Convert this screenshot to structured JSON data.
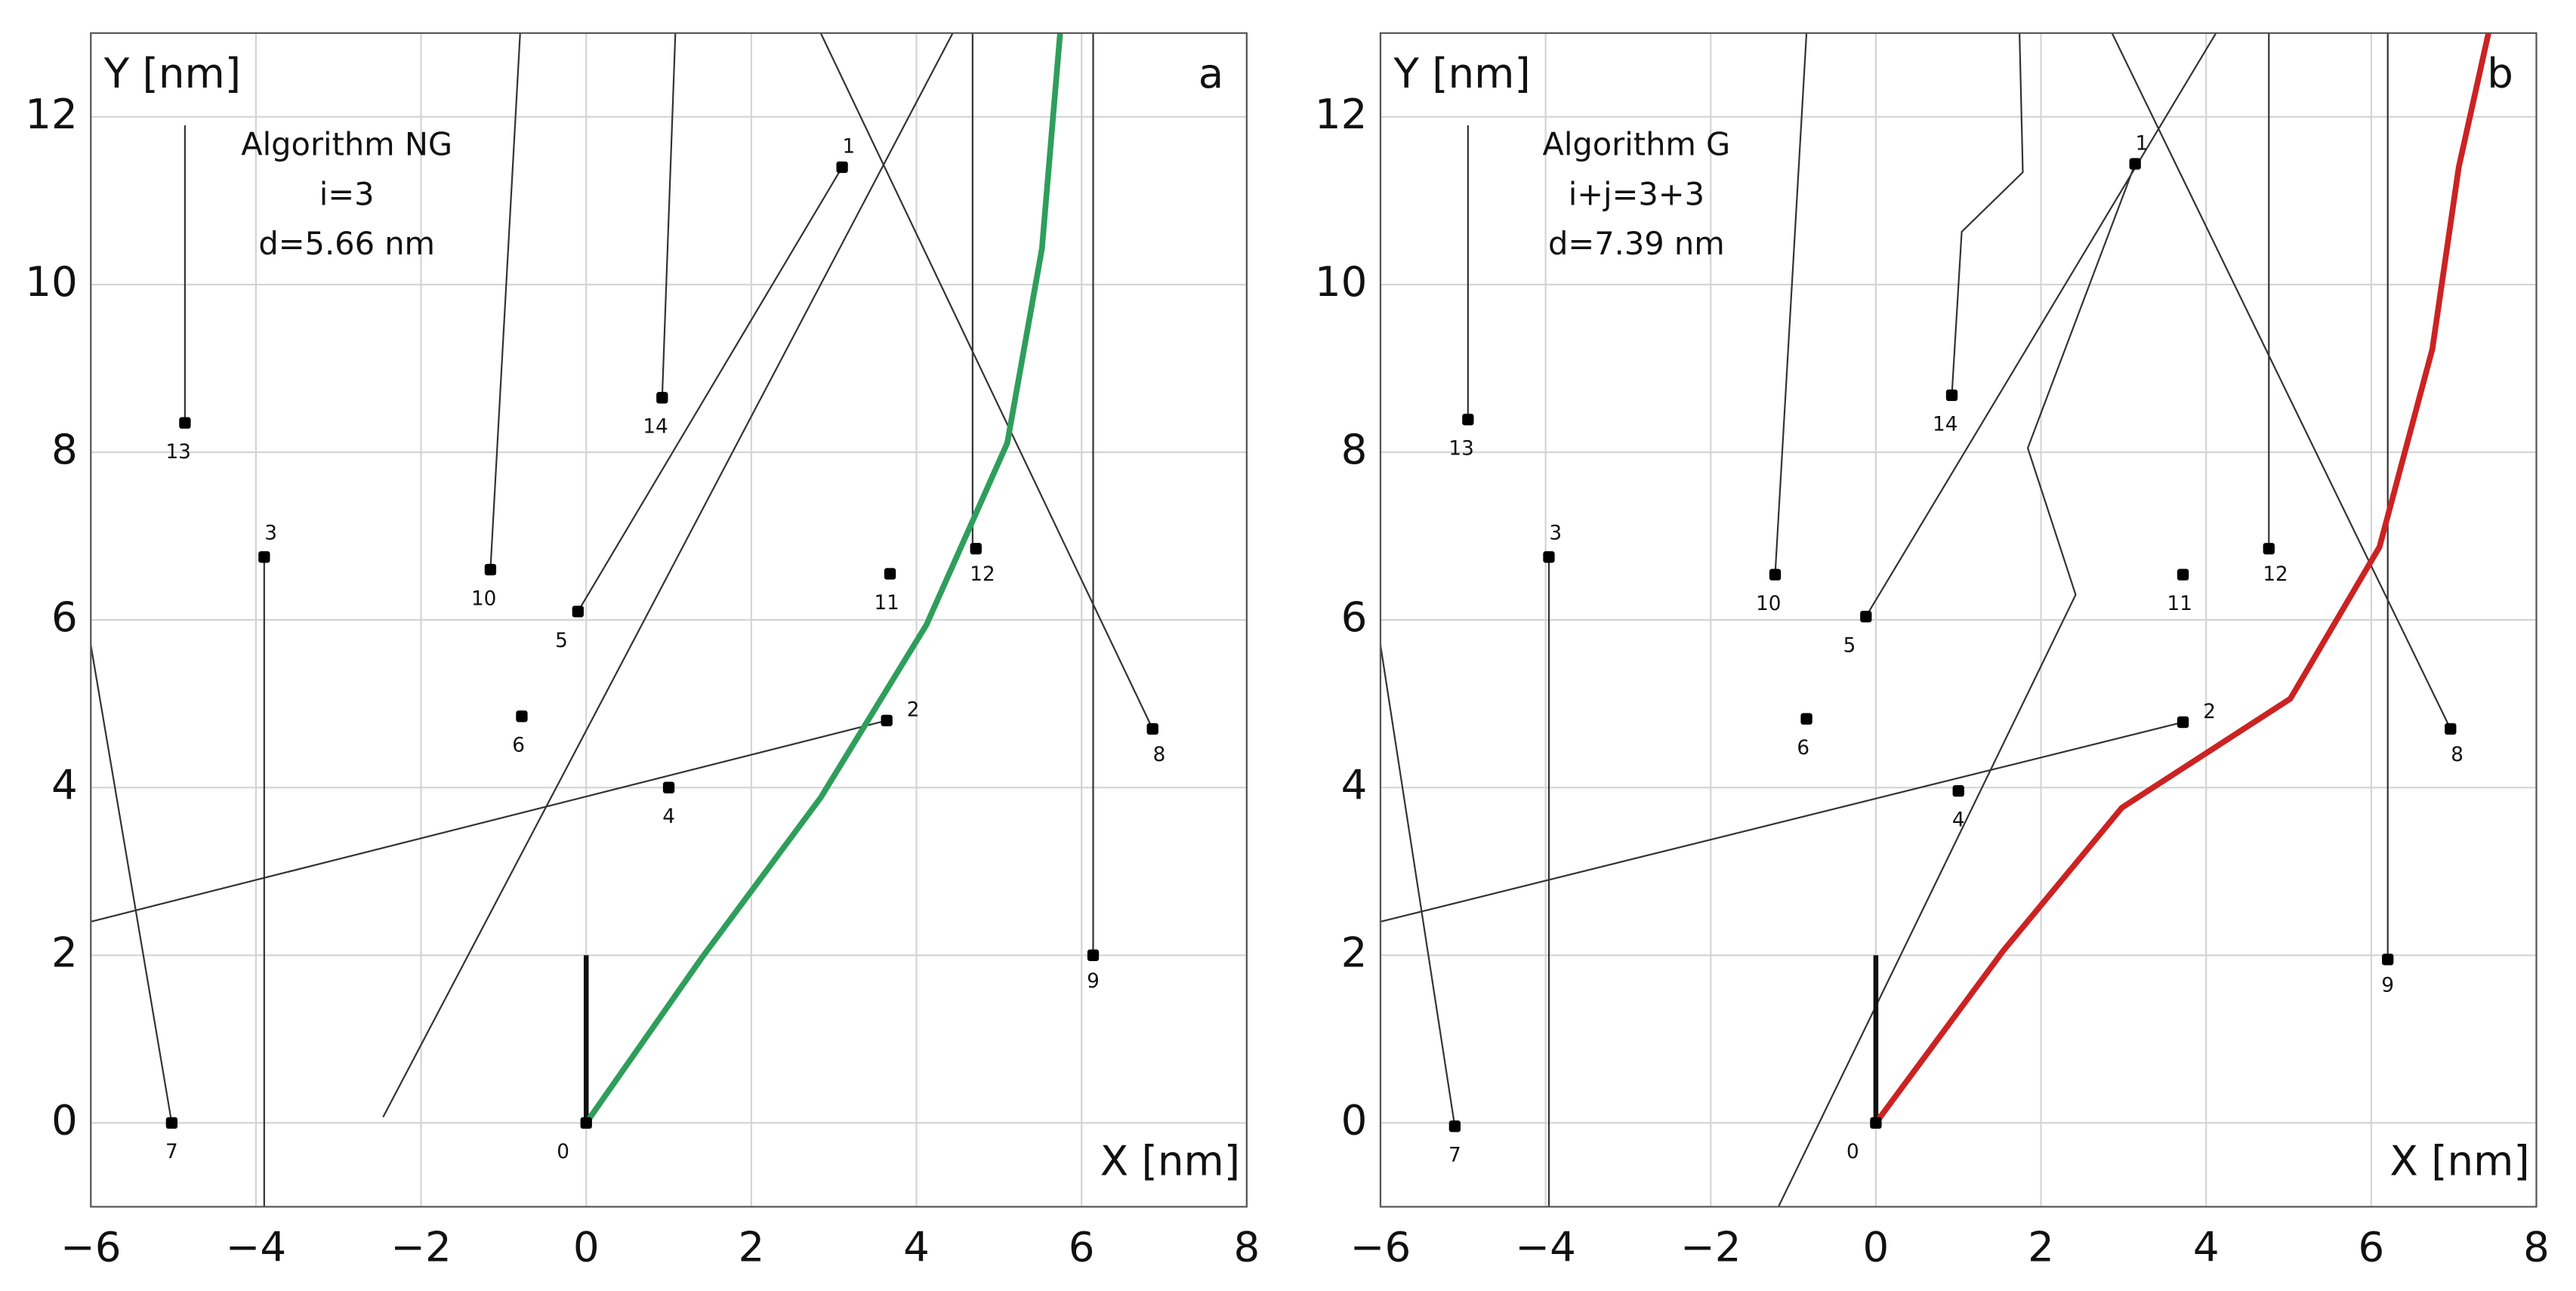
{
  "chart_data": [
    {
      "type": "scatter",
      "panel": "a",
      "xlabel": "X [nm]",
      "ylabel": "Y [nm]",
      "annotations": [
        "Algorithm NG",
        "i=3",
        "d=5.66 nm"
      ],
      "xlim": [
        -6,
        8
      ],
      "ylim": [
        -1,
        13
      ],
      "xticks": [
        {
          "value": -6,
          "label": "−6"
        },
        {
          "value": -4,
          "label": "−4"
        },
        {
          "value": -2,
          "label": "−2"
        },
        0,
        2,
        4,
        6,
        8
      ],
      "yticks": [
        0,
        2,
        4,
        6,
        8,
        10,
        12
      ],
      "grid": true,
      "points": {
        "labels": [
          "0",
          "1",
          "2",
          "3",
          "4",
          "5",
          "6",
          "7",
          "8",
          "9",
          "10",
          "11",
          "12",
          "13",
          "14"
        ],
        "x": [
          0,
          3.1,
          3.64,
          -3.9,
          1.0,
          -0.1,
          -0.78,
          -5.02,
          6.86,
          6.14,
          -1.16,
          3.68,
          4.72,
          -4.86,
          0.92
        ],
        "y": [
          0,
          11.4,
          4.8,
          6.75,
          4.0,
          6.1,
          4.85,
          0,
          4.7,
          2.0,
          6.6,
          6.55,
          6.85,
          8.35,
          8.65
        ]
      },
      "lines": [
        {
          "x": [
            -4.86,
            -4.86
          ],
          "y": [
            8.35,
            11.9
          ]
        },
        {
          "x": [
            -3.9,
            -3.9
          ],
          "y": [
            6.75,
            -1
          ]
        },
        {
          "x": [
            -6,
            -5.02
          ],
          "y": [
            5.7,
            0
          ]
        },
        {
          "x": [
            3.64,
            -6
          ],
          "y": [
            4.8,
            2.4
          ]
        },
        {
          "x": [
            -1.16,
            -0.8
          ],
          "y": [
            6.6,
            13
          ]
        },
        {
          "x": [
            0.92,
            1.08
          ],
          "y": [
            8.65,
            13
          ]
        },
        {
          "x": [
            -0.1,
            3.1
          ],
          "y": [
            6.1,
            11.4
          ]
        },
        {
          "x": [
            -2.46,
            4.44
          ],
          "y": [
            0.07,
            13
          ]
        },
        {
          "x": [
            6.86,
            2.84
          ],
          "y": [
            4.7,
            13
          ]
        },
        {
          "x": [
            4.68,
            4.68
          ],
          "y": [
            6.85,
            13
          ]
        },
        {
          "x": [
            6.14,
            6.14
          ],
          "y": [
            2.0,
            13
          ]
        }
      ],
      "start_segment": {
        "x": [
          0,
          0
        ],
        "y": [
          0,
          2
        ]
      },
      "path": {
        "color": "#2e9e5b",
        "x": [
          0,
          1.4,
          2.84,
          4.12,
          5.1,
          5.52,
          5.74
        ],
        "y": [
          0,
          1.97,
          3.88,
          5.94,
          8.11,
          10.43,
          13
        ]
      }
    },
    {
      "type": "scatter",
      "panel": "b",
      "xlabel": "X [nm]",
      "ylabel": "Y [nm]",
      "annotations": [
        "Algorithm G",
        "i+j=3+3",
        "d=7.39 nm"
      ],
      "xlim": [
        -6,
        8
      ],
      "ylim": [
        -1,
        13
      ],
      "xticks": [
        {
          "value": -6,
          "label": "−6"
        },
        {
          "value": -4,
          "label": "−4"
        },
        {
          "value": -2,
          "label": "−2"
        },
        0,
        2,
        4,
        6,
        8
      ],
      "yticks": [
        0,
        2,
        4,
        6,
        8,
        10,
        12
      ],
      "grid": true,
      "points": {
        "labels": [
          "0",
          "1",
          "2",
          "3",
          "4",
          "5",
          "6",
          "7",
          "8",
          "9",
          "10",
          "11",
          "12",
          "13",
          "14"
        ],
        "x": [
          0,
          3.14,
          3.72,
          -3.96,
          1.0,
          -0.12,
          -0.84,
          -5.1,
          6.96,
          6.2,
          -1.22,
          3.72,
          4.76,
          -4.94,
          0.92
        ],
        "y": [
          0,
          11.44,
          4.78,
          6.75,
          3.96,
          6.04,
          4.82,
          -0.04,
          4.7,
          1.95,
          6.54,
          6.54,
          6.85,
          8.39,
          8.68
        ]
      },
      "lines": [
        {
          "x": [
            -4.94,
            -4.94
          ],
          "y": [
            8.39,
            11.9
          ]
        },
        {
          "x": [
            -3.96,
            -3.96
          ],
          "y": [
            6.75,
            -1
          ]
        },
        {
          "x": [
            -6,
            -5.1
          ],
          "y": [
            5.7,
            -0.04
          ]
        },
        {
          "x": [
            3.72,
            -6
          ],
          "y": [
            4.78,
            2.4
          ]
        },
        {
          "x": [
            -1.22,
            -0.84
          ],
          "y": [
            6.54,
            13
          ]
        },
        {
          "x": [
            0.92,
            1.04,
            1.78,
            1.74
          ],
          "y": [
            8.68,
            10.63,
            11.34,
            13
          ]
        },
        {
          "x": [
            3.14,
            1.84,
            2.42,
            -1.18
          ],
          "y": [
            11.44,
            8.05,
            6.3,
            -1
          ]
        },
        {
          "x": [
            -0.12,
            4.12
          ],
          "y": [
            6.04,
            13
          ]
        },
        {
          "x": [
            6.96,
            2.86
          ],
          "y": [
            4.7,
            13
          ]
        },
        {
          "x": [
            4.76,
            4.76
          ],
          "y": [
            6.85,
            13
          ]
        },
        {
          "x": [
            6.2,
            6.2
          ],
          "y": [
            1.95,
            13
          ]
        }
      ],
      "start_segment": {
        "x": [
          0,
          0
        ],
        "y": [
          0,
          2
        ]
      },
      "path": {
        "color": "#cc2222",
        "x": [
          0,
          1.54,
          2.98,
          5.02,
          6.1,
          6.74,
          7.06,
          7.42
        ],
        "y": [
          0,
          2.05,
          3.76,
          5.06,
          6.87,
          9.23,
          11.4,
          13
        ]
      }
    }
  ]
}
